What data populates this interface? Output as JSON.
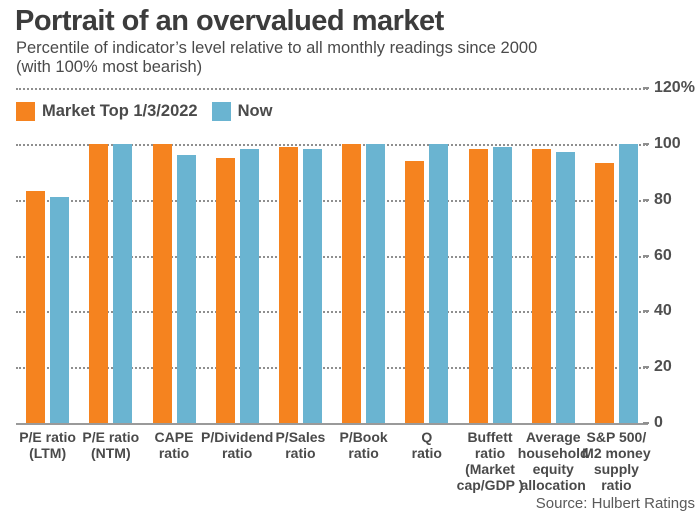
{
  "header": {
    "title": "Portrait of an overvalued market",
    "subtitle_lines": [
      "Percentile of indicator’s level relative to all monthly readings since 2000",
      "(with 100% most bearish)"
    ]
  },
  "legend": [
    {
      "label": "Market Top 1/3/2022",
      "color": "#F5831F"
    },
    {
      "label": "Now",
      "color": "#6AB4D1"
    }
  ],
  "source": "Source: Hulbert Ratings",
  "colors": {
    "market_top_orange": "#F5831F",
    "now_blue": "#6AB4D1",
    "gridline_gray": "#8f8f8f",
    "text_dark_gray": "#3c3c3c"
  },
  "chart_data": {
    "type": "bar",
    "title": "Portrait of an overvalued market",
    "subtitle": "Percentile of indicator’s level relative to all monthly readings since 2000 (with 100% most bearish)",
    "categories": [
      [
        "P/E ratio",
        "(LTM)"
      ],
      [
        "P/E ratio",
        "(NTM)"
      ],
      [
        "CAPE",
        "ratio"
      ],
      [
        "P/Dividend",
        "ratio"
      ],
      [
        "P/Sales",
        "ratio"
      ],
      [
        "P/Book",
        "ratio"
      ],
      [
        "Q",
        "ratio"
      ],
      [
        "Buffett",
        "ratio",
        "(Market",
        "cap/GDP )"
      ],
      [
        "Average",
        "household",
        "equity",
        "allocation"
      ],
      [
        "S&P 500/",
        "M2 money",
        "supply",
        "ratio"
      ]
    ],
    "series": [
      {
        "name": "Market Top 1/3/2022",
        "color": "#F5831F",
        "values": [
          83,
          100,
          100,
          95,
          99,
          100,
          94,
          98,
          98,
          93
        ]
      },
      {
        "name": "Now",
        "color": "#6AB4D1",
        "values": [
          81,
          100,
          96,
          98,
          98,
          100,
          100,
          99,
          97,
          100
        ]
      }
    ],
    "xlabel": "",
    "ylabel": "",
    "ylim": [
      0,
      120
    ],
    "yticks": [
      {
        "value": 120,
        "label": "120%"
      },
      {
        "value": 100,
        "label": "100"
      },
      {
        "value": 80,
        "label": "80"
      },
      {
        "value": 60,
        "label": "60"
      },
      {
        "value": 40,
        "label": "40"
      },
      {
        "value": 20,
        "label": "20"
      },
      {
        "value": 0,
        "label": "0"
      }
    ],
    "grid": "horizontal-dotted",
    "legend_position": "top-left",
    "source": "Source: Hulbert Ratings"
  }
}
